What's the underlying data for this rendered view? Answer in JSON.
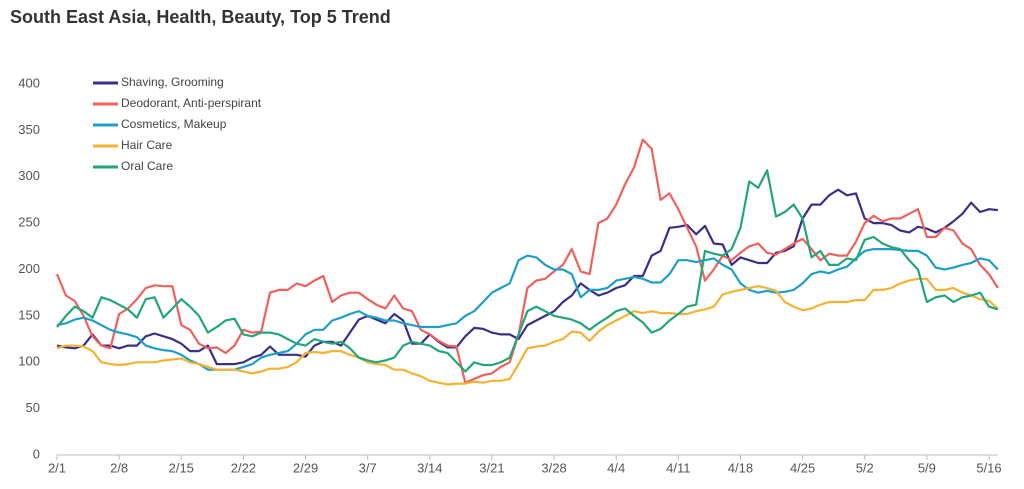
{
  "chart_data": {
    "type": "line",
    "title": "South East Asia, Health, Beauty, Top 5 Trend",
    "categories": [
      "2/1",
      null,
      null,
      null,
      null,
      null,
      null,
      "2/8",
      null,
      null,
      null,
      null,
      null,
      null,
      "2/15",
      null,
      null,
      null,
      null,
      null,
      null,
      "2/22",
      null,
      null,
      null,
      null,
      null,
      null,
      "2/29",
      null,
      null,
      null,
      null,
      null,
      null,
      "3/7",
      null,
      null,
      null,
      null,
      null,
      null,
      "3/14",
      null,
      null,
      null,
      null,
      null,
      null,
      "3/21",
      null,
      null,
      null,
      null,
      null,
      null,
      "3/28",
      null,
      null,
      null,
      null,
      null,
      null,
      "4/4",
      null,
      null,
      null,
      null,
      null,
      null,
      "4/11",
      null,
      null,
      null,
      null,
      null,
      null,
      "4/18",
      null,
      null,
      null,
      null,
      null,
      null,
      "4/25",
      null,
      null,
      null,
      null,
      null,
      null,
      "5/2",
      null,
      null,
      null,
      null,
      null,
      null,
      "5/9",
      null,
      null,
      null,
      null,
      null,
      null,
      "5/16",
      null
    ],
    "series": [
      {
        "name": "Shaving, Grooming",
        "color": "#3b3089",
        "values": [
          118,
          116,
          115,
          118,
          130,
          118,
          118,
          115,
          118,
          118,
          128,
          131,
          128,
          125,
          120,
          112,
          112,
          118,
          98,
          98,
          98,
          100,
          105,
          108,
          117,
          108,
          108,
          108,
          106,
          118,
          122,
          122,
          118,
          132,
          146,
          150,
          146,
          142,
          152,
          145,
          120,
          120,
          130,
          122,
          116,
          116,
          128,
          137,
          136,
          132,
          130,
          130,
          125,
          140,
          145,
          150,
          155,
          165,
          172,
          185,
          178,
          172,
          175,
          180,
          183,
          193,
          193,
          215,
          220,
          245,
          246,
          248,
          238,
          247,
          228,
          227,
          205,
          213,
          210,
          207,
          207,
          218,
          220,
          225,
          255,
          270,
          270,
          280,
          286,
          280,
          282,
          255,
          250,
          250,
          248,
          242,
          240,
          246,
          244,
          240,
          245,
          252,
          260,
          272,
          262,
          265,
          264
        ]
      },
      {
        "name": "Deodorant, Anti-perspirant",
        "color": "#f0605d",
        "values": [
          195,
          172,
          166,
          150,
          128,
          118,
          115,
          152,
          158,
          168,
          180,
          183,
          182,
          182,
          140,
          135,
          120,
          115,
          116,
          110,
          118,
          135,
          132,
          133,
          175,
          178,
          178,
          185,
          182,
          188,
          193,
          165,
          172,
          175,
          175,
          168,
          162,
          158,
          172,
          158,
          155,
          135,
          130,
          123,
          118,
          117,
          78,
          82,
          86,
          88,
          95,
          100,
          130,
          180,
          188,
          190,
          198,
          205,
          222,
          198,
          195,
          250,
          255,
          270,
          292,
          310,
          340,
          330,
          275,
          282,
          265,
          245,
          225,
          188,
          200,
          215,
          210,
          218,
          225,
          228,
          218,
          216,
          222,
          228,
          233,
          222,
          210,
          217,
          215,
          215,
          230,
          250,
          258,
          252,
          255,
          255,
          260,
          265,
          235,
          235,
          245,
          242,
          228,
          222,
          205,
          195,
          180
        ]
      },
      {
        "name": "Cosmetics, Makeup",
        "color": "#1f9fc8",
        "values": [
          140,
          142,
          146,
          148,
          145,
          140,
          135,
          132,
          130,
          127,
          118,
          115,
          113,
          112,
          108,
          102,
          98,
          92,
          92,
          92,
          92,
          95,
          98,
          105,
          108,
          110,
          112,
          120,
          130,
          135,
          135,
          145,
          148,
          152,
          155,
          150,
          148,
          145,
          145,
          142,
          140,
          138,
          138,
          138,
          140,
          142,
          150,
          155,
          165,
          175,
          180,
          185,
          210,
          215,
          213,
          205,
          200,
          200,
          195,
          170,
          178,
          178,
          180,
          188,
          190,
          192,
          190,
          186,
          186,
          195,
          210,
          210,
          208,
          210,
          212,
          205,
          200,
          185,
          178,
          175,
          177,
          175,
          176,
          178,
          185,
          195,
          198,
          196,
          200,
          203,
          212,
          220,
          222,
          222,
          222,
          221,
          220,
          220,
          215,
          202,
          200,
          202,
          205,
          207,
          212,
          210,
          200
        ]
      },
      {
        "name": "Hair Care",
        "color": "#f5b233",
        "values": [
          115,
          118,
          118,
          117,
          112,
          100,
          98,
          97,
          98,
          100,
          100,
          100,
          102,
          103,
          104,
          100,
          98,
          95,
          92,
          92,
          92,
          90,
          88,
          90,
          93,
          93,
          95,
          100,
          110,
          111,
          110,
          112,
          112,
          108,
          105,
          100,
          98,
          97,
          92,
          92,
          88,
          85,
          80,
          78,
          76,
          77,
          77,
          79,
          78,
          80,
          80,
          82,
          98,
          115,
          117,
          118,
          122,
          125,
          133,
          132,
          123,
          133,
          140,
          145,
          150,
          155,
          153,
          155,
          153,
          153,
          152,
          152,
          155,
          157,
          160,
          173,
          176,
          178,
          180,
          182,
          180,
          177,
          165,
          160,
          156,
          158,
          162,
          165,
          165,
          165,
          167,
          167,
          178,
          178,
          180,
          185,
          188,
          190,
          190,
          178,
          178,
          180,
          175,
          172,
          168,
          166,
          158
        ]
      },
      {
        "name": "Oral Care",
        "color": "#22a67a",
        "values": [
          138,
          150,
          160,
          155,
          148,
          170,
          167,
          162,
          157,
          148,
          168,
          170,
          148,
          158,
          168,
          160,
          150,
          132,
          138,
          145,
          147,
          130,
          128,
          132,
          132,
          130,
          125,
          120,
          118,
          125,
          122,
          120,
          122,
          115,
          105,
          102,
          100,
          102,
          105,
          118,
          122,
          120,
          118,
          112,
          110,
          100,
          90,
          100,
          97,
          97,
          100,
          105,
          130,
          155,
          160,
          155,
          150,
          148,
          146,
          142,
          135,
          142,
          148,
          155,
          158,
          150,
          143,
          132,
          136,
          145,
          152,
          160,
          162,
          220,
          217,
          215,
          222,
          245,
          295,
          288,
          307,
          257,
          262,
          270,
          255,
          213,
          220,
          205,
          205,
          212,
          210,
          232,
          235,
          228,
          224,
          222,
          210,
          200,
          165,
          170,
          172,
          165,
          170,
          172,
          175,
          160,
          157
        ]
      }
    ],
    "ylim": [
      0,
      400
    ],
    "yticks": [
      0,
      50,
      100,
      150,
      200,
      250,
      300,
      350,
      400
    ],
    "grid": false
  }
}
